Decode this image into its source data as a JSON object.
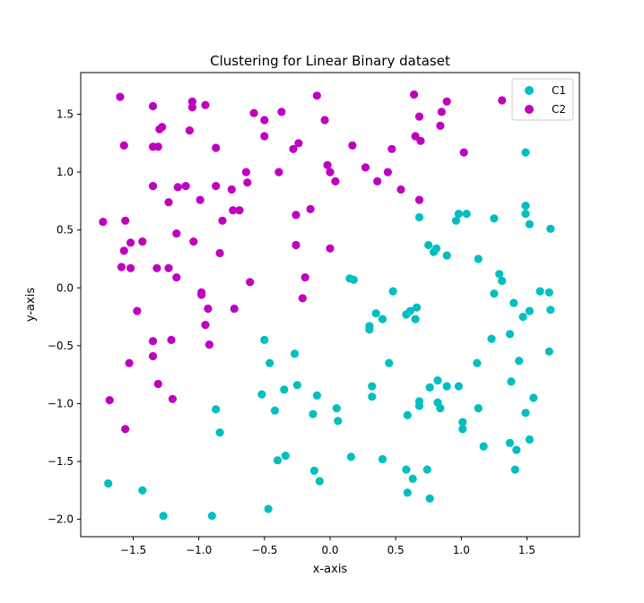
{
  "chart_data": {
    "type": "scatter",
    "title": "Clustering for Linear Binary dataset",
    "xlabel": "x-axis",
    "ylabel": "y-axis",
    "xlim": [
      -1.9,
      1.9
    ],
    "ylim": [
      -2.15,
      1.86
    ],
    "xticks": [
      -1.5,
      -1.0,
      -0.5,
      0.0,
      0.5,
      1.0,
      1.5
    ],
    "xtick_labels": [
      "−1.5",
      "−1.0",
      "−0.5",
      "0.0",
      "0.5",
      "1.0",
      "1.5"
    ],
    "yticks": [
      -2.0,
      -1.5,
      -1.0,
      -0.5,
      0.0,
      0.5,
      1.0,
      1.5
    ],
    "ytick_labels": [
      "−2.0",
      "−1.5",
      "−1.0",
      "−0.5",
      "0.0",
      "0.5",
      "1.0",
      "1.5"
    ],
    "grid": false,
    "legend_position": "top-right",
    "series": [
      {
        "name": "C1",
        "color": "#00bfbf",
        "points": [
          [
            1.68,
            0.51
          ],
          [
            1.49,
            0.71
          ],
          [
            1.49,
            0.64
          ],
          [
            1.52,
            0.55
          ],
          [
            1.25,
            0.6
          ],
          [
            0.98,
            0.64
          ],
          [
            1.04,
            0.64
          ],
          [
            0.96,
            0.58
          ],
          [
            0.68,
            0.61
          ],
          [
            0.75,
            0.37
          ],
          [
            0.79,
            0.31
          ],
          [
            0.81,
            0.34
          ],
          [
            0.89,
            0.28
          ],
          [
            1.13,
            0.25
          ],
          [
            1.29,
            0.12
          ],
          [
            1.31,
            0.06
          ],
          [
            0.15,
            0.08
          ],
          [
            0.18,
            0.07
          ],
          [
            0.48,
            -0.03
          ],
          [
            1.25,
            -0.05
          ],
          [
            1.6,
            -0.03
          ],
          [
            1.67,
            -0.04
          ],
          [
            0.66,
            -0.17
          ],
          [
            0.61,
            -0.2
          ],
          [
            0.58,
            -0.23
          ],
          [
            0.35,
            -0.22
          ],
          [
            0.4,
            -0.27
          ],
          [
            0.65,
            -0.27
          ],
          [
            0.3,
            -0.33
          ],
          [
            0.3,
            -0.36
          ],
          [
            1.4,
            -0.13
          ],
          [
            1.52,
            -0.2
          ],
          [
            1.68,
            -0.19
          ],
          [
            1.47,
            -0.25
          ],
          [
            1.37,
            -0.4
          ],
          [
            1.23,
            -0.44
          ],
          [
            1.67,
            -0.55
          ],
          [
            -0.5,
            -0.45
          ],
          [
            -0.46,
            -0.65
          ],
          [
            -0.27,
            -0.57
          ],
          [
            0.45,
            -0.65
          ],
          [
            1.12,
            -0.65
          ],
          [
            1.44,
            -0.63
          ],
          [
            0.82,
            -0.8
          ],
          [
            0.76,
            -0.86
          ],
          [
            0.89,
            -0.85
          ],
          [
            0.98,
            -0.85
          ],
          [
            1.38,
            -0.81
          ],
          [
            0.32,
            -0.85
          ],
          [
            0.32,
            -0.94
          ],
          [
            -0.35,
            -0.88
          ],
          [
            -0.25,
            -0.84
          ],
          [
            -0.52,
            -0.92
          ],
          [
            -0.1,
            -0.93
          ],
          [
            0.68,
            -0.98
          ],
          [
            0.68,
            -1.02
          ],
          [
            0.82,
            -0.99
          ],
          [
            0.84,
            -1.04
          ],
          [
            1.55,
            -0.95
          ],
          [
            -0.87,
            -1.05
          ],
          [
            -0.42,
            -1.06
          ],
          [
            0.05,
            -1.04
          ],
          [
            0.06,
            -1.15
          ],
          [
            0.59,
            -1.1
          ],
          [
            1.01,
            -1.16
          ],
          [
            1.01,
            -1.22
          ],
          [
            1.13,
            -1.04
          ],
          [
            1.49,
            -1.08
          ],
          [
            -0.13,
            -1.09
          ],
          [
            -0.84,
            -1.25
          ],
          [
            1.17,
            -1.37
          ],
          [
            1.37,
            -1.34
          ],
          [
            1.42,
            -1.4
          ],
          [
            1.52,
            -1.31
          ],
          [
            0.16,
            -1.46
          ],
          [
            0.4,
            -1.48
          ],
          [
            -0.4,
            -1.49
          ],
          [
            -0.34,
            -1.45
          ],
          [
            -0.12,
            -1.58
          ],
          [
            -0.08,
            -1.67
          ],
          [
            0.58,
            -1.57
          ],
          [
            0.63,
            -1.65
          ],
          [
            0.74,
            -1.57
          ],
          [
            1.41,
            -1.57
          ],
          [
            0.59,
            -1.77
          ],
          [
            0.76,
            -1.82
          ],
          [
            -1.69,
            -1.69
          ],
          [
            -1.43,
            -1.75
          ],
          [
            -0.47,
            -1.91
          ],
          [
            -1.27,
            -1.97
          ],
          [
            -0.9,
            -1.97
          ],
          [
            1.49,
            1.17
          ]
        ]
      },
      {
        "name": "C2",
        "color": "#bf00bf",
        "points": [
          [
            -1.6,
            1.65
          ],
          [
            -1.35,
            1.57
          ],
          [
            -1.3,
            1.37
          ],
          [
            -1.28,
            1.39
          ],
          [
            -1.35,
            1.22
          ],
          [
            -1.31,
            1.22
          ],
          [
            -1.57,
            1.23
          ],
          [
            -1.05,
            1.61
          ],
          [
            -1.05,
            1.56
          ],
          [
            -0.95,
            1.58
          ],
          [
            -1.07,
            1.36
          ],
          [
            -0.87,
            1.21
          ],
          [
            -0.58,
            1.51
          ],
          [
            -0.5,
            1.45
          ],
          [
            -0.37,
            1.52
          ],
          [
            -0.1,
            1.66
          ],
          [
            -0.04,
            1.45
          ],
          [
            -0.5,
            1.31
          ],
          [
            -0.24,
            1.25
          ],
          [
            -0.28,
            1.2
          ],
          [
            0.17,
            1.23
          ],
          [
            0.47,
            1.2
          ],
          [
            0.64,
            1.67
          ],
          [
            0.68,
            1.48
          ],
          [
            0.85,
            1.52
          ],
          [
            0.89,
            1.61
          ],
          [
            0.65,
            1.31
          ],
          [
            0.69,
            1.27
          ],
          [
            0.84,
            1.4
          ],
          [
            1.02,
            1.17
          ],
          [
            1.31,
            1.62
          ],
          [
            -0.02,
            1.06
          ],
          [
            0.0,
            1.0
          ],
          [
            0.04,
            0.92
          ],
          [
            0.27,
            1.04
          ],
          [
            0.36,
            0.92
          ],
          [
            0.44,
            1.0
          ],
          [
            0.54,
            0.85
          ],
          [
            0.68,
            0.76
          ],
          [
            -0.39,
            1.0
          ],
          [
            -0.64,
            1.0
          ],
          [
            -0.63,
            0.91
          ],
          [
            -0.75,
            0.85
          ],
          [
            -0.87,
            0.88
          ],
          [
            -1.1,
            0.88
          ],
          [
            -1.16,
            0.87
          ],
          [
            -1.35,
            0.88
          ],
          [
            -1.23,
            0.74
          ],
          [
            -0.99,
            0.76
          ],
          [
            -0.74,
            0.67
          ],
          [
            -0.69,
            0.67
          ],
          [
            -0.82,
            0.58
          ],
          [
            -1.73,
            0.57
          ],
          [
            -1.56,
            0.58
          ],
          [
            -1.52,
            0.39
          ],
          [
            -1.43,
            0.4
          ],
          [
            -1.17,
            0.47
          ],
          [
            -1.04,
            0.4
          ],
          [
            -0.84,
            0.3
          ],
          [
            -0.26,
            0.63
          ],
          [
            -0.15,
            0.68
          ],
          [
            -0.26,
            0.37
          ],
          [
            -0.0,
            0.34
          ],
          [
            -1.57,
            0.32
          ],
          [
            -1.59,
            0.18
          ],
          [
            -1.52,
            0.17
          ],
          [
            -1.32,
            0.17
          ],
          [
            -1.23,
            0.17
          ],
          [
            -1.17,
            0.09
          ],
          [
            -0.19,
            0.09
          ],
          [
            -0.61,
            0.05
          ],
          [
            -0.98,
            -0.04
          ],
          [
            -0.98,
            -0.06
          ],
          [
            -0.21,
            -0.09
          ],
          [
            -1.47,
            -0.2
          ],
          [
            -0.93,
            -0.18
          ],
          [
            -0.73,
            -0.18
          ],
          [
            -0.95,
            -0.32
          ],
          [
            -1.35,
            -0.46
          ],
          [
            -1.21,
            -0.45
          ],
          [
            -0.92,
            -0.49
          ],
          [
            -1.35,
            -0.59
          ],
          [
            -1.53,
            -0.65
          ],
          [
            -1.31,
            -0.83
          ],
          [
            -1.2,
            -0.96
          ],
          [
            -1.68,
            -0.97
          ],
          [
            -1.56,
            -1.22
          ]
        ]
      }
    ]
  }
}
